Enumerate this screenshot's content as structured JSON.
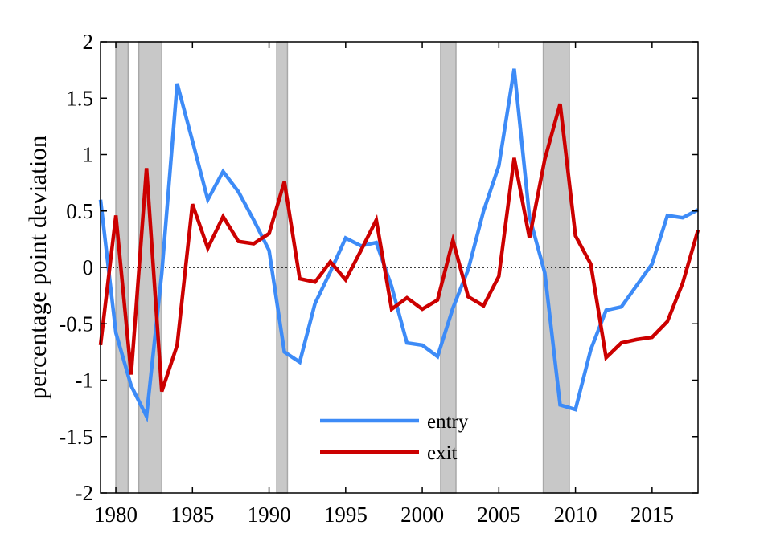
{
  "chart_data": {
    "type": "line",
    "title": "",
    "xlabel": "",
    "ylabel": "percentage point deviation",
    "xlim": [
      1979,
      2018
    ],
    "ylim": [
      -2,
      2
    ],
    "xticks": [
      1980,
      1985,
      1990,
      1995,
      2000,
      2005,
      2010,
      2015
    ],
    "yticks": [
      2,
      1.5,
      1,
      0.5,
      0,
      -0.5,
      -1,
      -1.5,
      -2
    ],
    "ytick_labels": [
      "2",
      "1.5",
      "1",
      "0.5",
      "0",
      "-0.5",
      "-1",
      "-1.5",
      "-2"
    ],
    "zero_line": "dotted",
    "grid": false,
    "legend_position": "bottom-center",
    "recession_bands": [
      [
        1980.0,
        1980.8
      ],
      [
        1981.5,
        1983.0
      ],
      [
        1990.5,
        1991.2
      ],
      [
        2001.2,
        2002.2
      ],
      [
        2007.9,
        2009.6
      ]
    ],
    "band_color": "#c8c8c8",
    "x": [
      1979,
      1980,
      1981,
      1982,
      1983,
      1984,
      1985,
      1986,
      1987,
      1988,
      1989,
      1990,
      1991,
      1992,
      1993,
      1994,
      1995,
      1996,
      1997,
      1998,
      1999,
      2000,
      2001,
      2002,
      2003,
      2004,
      2005,
      2006,
      2007,
      2008,
      2009,
      2010,
      2011,
      2012,
      2013,
      2014,
      2015,
      2016,
      2017,
      2018
    ],
    "series": [
      {
        "name": "entry",
        "color": "#3d8bf7",
        "values": [
          0.6,
          -0.58,
          -1.05,
          -1.32,
          -0.05,
          1.63,
          1.12,
          0.6,
          0.85,
          0.67,
          0.42,
          0.15,
          -0.75,
          -0.84,
          -0.32,
          -0.04,
          0.26,
          0.19,
          0.22,
          -0.17,
          -0.67,
          -0.69,
          -0.79,
          -0.36,
          -0.02,
          0.5,
          0.9,
          1.76,
          0.45,
          -0.05,
          -1.22,
          -1.26,
          -0.73,
          -0.38,
          -0.35,
          -0.16,
          0.03,
          0.46,
          0.44,
          0.51
        ]
      },
      {
        "name": "exit",
        "color": "#cc0000",
        "values": [
          -0.69,
          0.46,
          -0.95,
          0.88,
          -1.1,
          -0.69,
          0.56,
          0.17,
          0.45,
          0.23,
          0.21,
          0.3,
          0.76,
          -0.1,
          -0.13,
          0.05,
          -0.11,
          0.15,
          0.42,
          -0.37,
          -0.27,
          -0.37,
          -0.29,
          0.24,
          -0.26,
          -0.34,
          -0.08,
          0.97,
          0.26,
          0.96,
          1.45,
          0.28,
          0.03,
          -0.8,
          -0.67,
          -0.64,
          -0.62,
          -0.48,
          -0.14,
          0.33
        ]
      }
    ]
  }
}
